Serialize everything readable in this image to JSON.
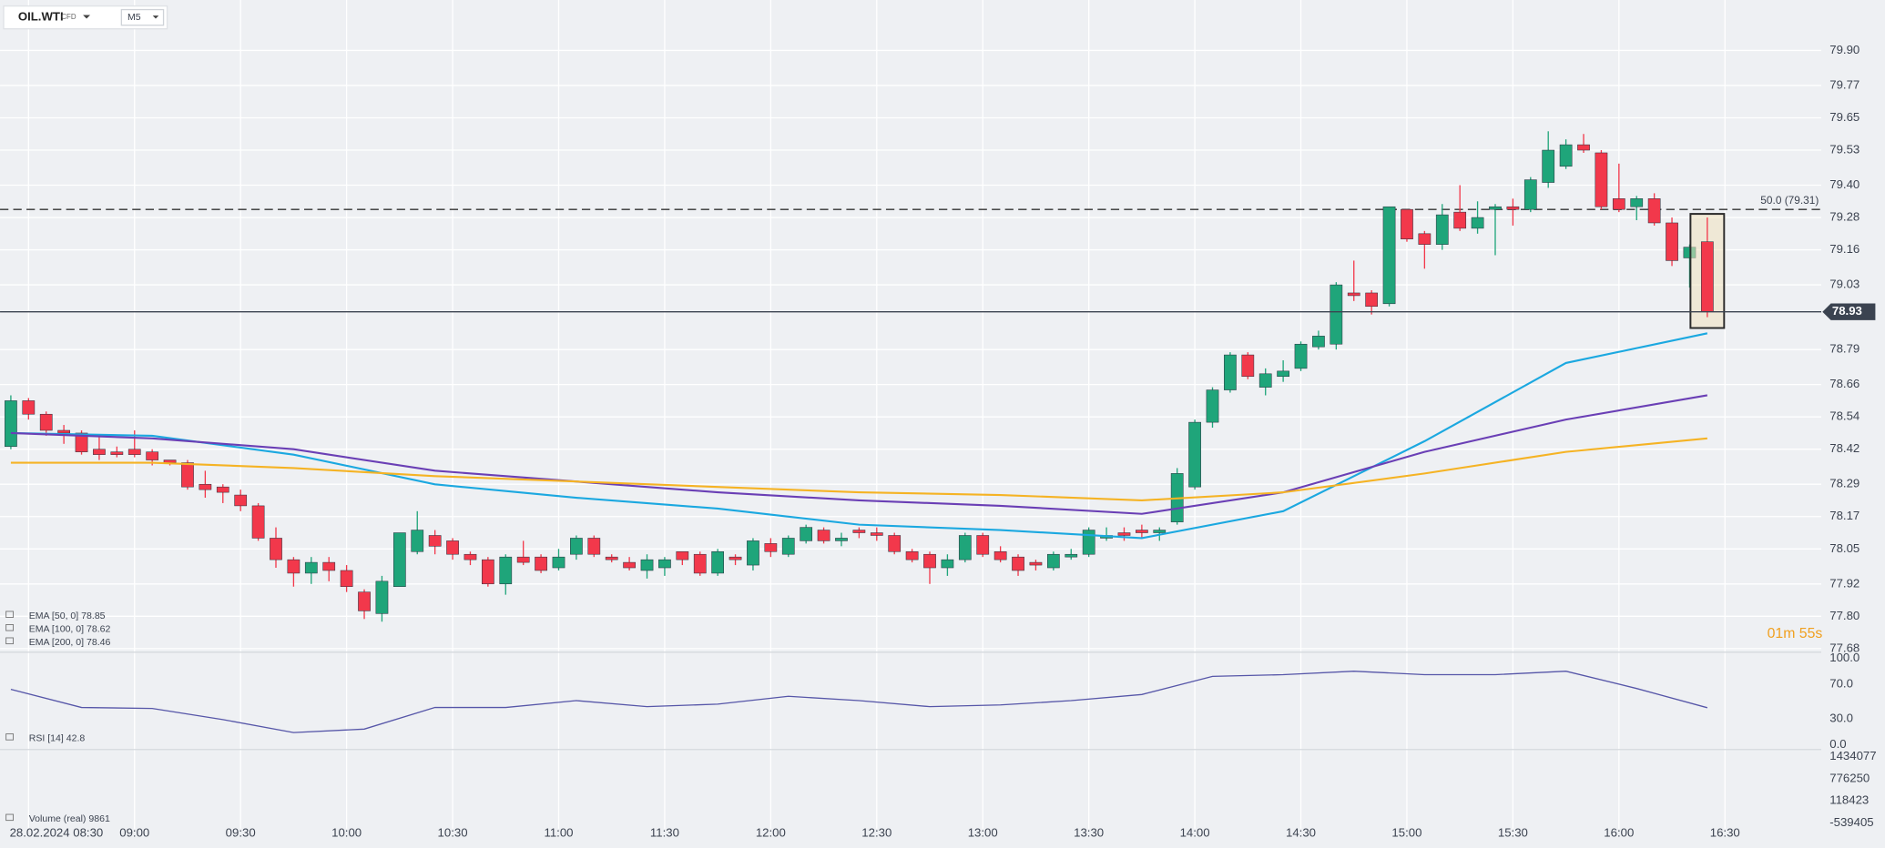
{
  "header": {
    "symbol": "OIL.WTI",
    "kind": "CFD",
    "timeframe": "M5"
  },
  "chart_data": {
    "type": "candlestick",
    "up_color": "#1fa57a",
    "down_color": "#f2384b",
    "open": [
      78.43,
      78.6,
      78.55,
      78.49,
      78.48,
      78.42,
      78.41,
      78.42,
      78.41,
      78.38,
      78.37,
      78.29,
      78.28,
      78.25,
      78.21,
      78.09,
      78.01,
      77.96,
      78.0,
      77.97,
      77.89,
      77.81,
      77.91,
      78.04,
      78.1,
      78.08,
      78.03,
      78.01,
      77.92,
      78.02,
      78.02,
      77.98,
      78.03,
      78.09,
      78.02,
      78.0,
      77.97,
      77.98,
      78.04,
      78.03,
      77.96,
      78.02,
      77.99,
      78.07,
      78.03,
      78.08,
      78.12,
      78.08,
      78.12,
      78.11,
      78.1,
      78.04,
      78.03,
      77.98,
      78.01,
      78.1,
      78.04,
      78.02,
      78.0,
      77.98,
      78.02,
      78.03,
      78.09,
      78.11,
      78.12,
      78.11,
      78.15,
      78.28,
      78.52,
      78.64,
      78.77,
      78.65,
      78.69,
      78.72,
      78.8,
      78.81,
      79.0,
      79.0,
      78.96,
      79.31,
      79.22,
      79.18,
      79.3,
      79.24,
      79.31,
      79.32,
      79.31,
      79.41,
      79.47,
      79.55,
      79.52,
      79.35,
      79.32,
      79.35,
      79.26,
      79.13,
      79.19
    ],
    "high": [
      78.62,
      78.61,
      78.56,
      78.51,
      78.49,
      78.47,
      78.43,
      78.49,
      78.42,
      78.38,
      78.38,
      78.34,
      78.29,
      78.27,
      78.22,
      78.13,
      78.02,
      78.02,
      78.02,
      77.99,
      77.9,
      77.95,
      78.11,
      78.19,
      78.12,
      78.09,
      78.04,
      78.02,
      78.03,
      78.08,
      78.03,
      78.05,
      78.1,
      78.1,
      78.03,
      78.02,
      78.03,
      78.02,
      78.04,
      78.04,
      78.05,
      78.03,
      78.09,
      78.09,
      78.1,
      78.14,
      78.13,
      78.11,
      78.13,
      78.13,
      78.11,
      78.05,
      78.04,
      78.03,
      78.11,
      78.11,
      78.06,
      78.03,
      78.01,
      78.04,
      78.05,
      78.13,
      78.13,
      78.13,
      78.14,
      78.13,
      78.35,
      78.53,
      78.65,
      78.78,
      78.78,
      78.72,
      78.75,
      78.82,
      78.86,
      79.04,
      79.12,
      79.01,
      79.32,
      79.31,
      79.23,
      79.33,
      79.4,
      79.34,
      79.33,
      79.35,
      79.43,
      79.6,
      79.57,
      79.59,
      79.53,
      79.48,
      79.36,
      79.37,
      79.28,
      79.18,
      79.28
    ],
    "low": [
      78.42,
      78.53,
      78.47,
      78.44,
      78.4,
      78.38,
      78.39,
      78.39,
      78.36,
      78.36,
      78.27,
      78.24,
      78.22,
      78.19,
      78.08,
      77.98,
      77.91,
      77.92,
      77.93,
      77.89,
      77.79,
      77.78,
      77.91,
      78.03,
      78.03,
      78.01,
      77.99,
      77.91,
      77.88,
      77.99,
      77.96,
      77.97,
      78.01,
      78.02,
      78.0,
      77.97,
      77.94,
      77.95,
      77.99,
      77.95,
      77.95,
      77.99,
      77.97,
      78.02,
      78.02,
      78.07,
      78.07,
      78.06,
      78.09,
      78.08,
      78.03,
      78.0,
      77.92,
      77.95,
      78.0,
      78.02,
      78.0,
      77.95,
      77.97,
      77.97,
      78.01,
      78.02,
      78.08,
      78.08,
      78.09,
      78.08,
      78.14,
      78.27,
      78.5,
      78.63,
      78.68,
      78.62,
      78.67,
      78.71,
      78.79,
      78.79,
      78.97,
      78.92,
      78.95,
      79.19,
      79.09,
      79.16,
      79.23,
      79.22,
      79.14,
      79.25,
      79.3,
      79.39,
      79.46,
      79.52,
      79.31,
      79.3,
      79.27,
      79.25,
      79.1,
      79.02,
      78.91
    ],
    "close": [
      78.6,
      78.55,
      78.49,
      78.48,
      78.41,
      78.4,
      78.4,
      78.4,
      78.38,
      78.37,
      78.28,
      78.27,
      78.26,
      78.21,
      78.09,
      78.01,
      77.96,
      78.0,
      77.97,
      77.91,
      77.82,
      77.93,
      78.11,
      78.12,
      78.06,
      78.03,
      78.01,
      77.92,
      78.02,
      78.0,
      77.97,
      78.02,
      78.09,
      78.03,
      78.01,
      77.98,
      78.01,
      78.01,
      78.01,
      77.96,
      78.04,
      78.01,
      78.08,
      78.04,
      78.09,
      78.13,
      78.08,
      78.09,
      78.11,
      78.1,
      78.04,
      78.01,
      77.98,
      78.01,
      78.1,
      78.03,
      78.01,
      77.97,
      77.99,
      78.03,
      78.03,
      78.12,
      78.1,
      78.1,
      78.11,
      78.12,
      78.33,
      78.52,
      78.64,
      78.77,
      78.69,
      78.7,
      78.71,
      78.81,
      78.84,
      79.03,
      78.99,
      78.95,
      79.32,
      79.2,
      79.18,
      79.29,
      79.24,
      79.28,
      79.32,
      79.31,
      79.42,
      79.53,
      79.55,
      79.53,
      79.32,
      79.31,
      79.35,
      79.26,
      79.12,
      79.17,
      78.93
    ],
    "ylim": [
      77.68,
      79.9
    ],
    "yticks": [
      {
        "value": 79.9,
        "label": "79.90"
      },
      79.77,
      79.65,
      79.53,
      {
        "value": 79.4,
        "label": "79.40"
      },
      79.28,
      79.16,
      79.03,
      78.79,
      78.66,
      78.54,
      78.42,
      78.29,
      78.17,
      78.05,
      77.92,
      {
        "value": 77.8,
        "label": "77.80"
      },
      77.68
    ],
    "xlim": [
      0,
      103
    ],
    "xticks": [
      {
        "value": 1,
        "label": "28.02.2024  08:30"
      },
      {
        "value": 7,
        "label": "09:00"
      },
      {
        "value": 13,
        "label": "09:30"
      },
      {
        "value": 19,
        "label": "10:00"
      },
      {
        "value": 25,
        "label": "10:30"
      },
      {
        "value": 31,
        "label": "11:00"
      },
      {
        "value": 37,
        "label": "11:30"
      },
      {
        "value": 43,
        "label": "12:00"
      },
      {
        "value": 49,
        "label": "12:30"
      },
      {
        "value": 55,
        "label": "13:00"
      },
      {
        "value": 61,
        "label": "13:30"
      },
      {
        "value": 67,
        "label": "14:00"
      },
      {
        "value": 73,
        "label": "14:30"
      },
      {
        "value": 79,
        "label": "15:00"
      },
      {
        "value": 85,
        "label": "15:30"
      },
      {
        "value": 91,
        "label": "16:00"
      },
      {
        "value": 97,
        "label": "16:30"
      }
    ],
    "current_price": 78.93,
    "level": {
      "value": 79.31,
      "label": "50.0 (79.31)"
    },
    "countdown": "01m 55s",
    "overlays": [
      {
        "name": "EMA [50, 0]  78.85",
        "color": "#1ba8e0",
        "x": [
          0,
          8,
          16,
          24,
          32,
          40,
          48,
          56,
          64,
          72,
          80,
          88,
          96
        ],
        "values": [
          78.48,
          78.47,
          78.4,
          78.29,
          78.24,
          78.2,
          78.14,
          78.12,
          78.09,
          78.19,
          78.45,
          78.74,
          78.85
        ]
      },
      {
        "name": "EMA [100, 0]  78.62",
        "color": "#6a3fb5",
        "x": [
          0,
          8,
          16,
          24,
          32,
          40,
          48,
          56,
          64,
          72,
          80,
          88,
          96
        ],
        "values": [
          78.48,
          78.46,
          78.42,
          78.34,
          78.3,
          78.26,
          78.23,
          78.21,
          78.18,
          78.26,
          78.41,
          78.53,
          78.62
        ]
      },
      {
        "name": "EMA [200, 0]  78.46",
        "color": "#f5b324",
        "x": [
          0,
          8,
          16,
          24,
          32,
          40,
          48,
          56,
          64,
          72,
          80,
          88,
          96
        ],
        "values": [
          78.37,
          78.37,
          78.35,
          78.32,
          78.3,
          78.28,
          78.26,
          78.25,
          78.23,
          78.26,
          78.33,
          78.41,
          78.46
        ]
      }
    ],
    "rsi": {
      "name": "RSI [14]  42.8",
      "color": "#5656a8",
      "ylim": [
        0,
        100
      ],
      "yticks": [
        {
          "value": 100,
          "label": "100.0"
        },
        {
          "value": 70,
          "label": "70.0"
        },
        {
          "value": 30,
          "label": "30.0"
        },
        {
          "value": 0,
          "label": "0.0"
        }
      ],
      "x": [
        0,
        4,
        8,
        12,
        16,
        20,
        24,
        28,
        32,
        36,
        40,
        44,
        48,
        52,
        56,
        60,
        64,
        68,
        72,
        76,
        80,
        84,
        88,
        92,
        96
      ],
      "values": [
        64,
        43,
        42,
        29,
        14,
        18,
        43,
        43,
        51,
        44,
        47,
        56,
        51,
        44,
        46,
        51,
        58,
        79,
        81,
        85,
        81,
        81,
        85,
        65,
        42.8
      ]
    },
    "volume": {
      "name": "Volume  (real)   9861",
      "ylim": [
        -539405,
        1434077
      ],
      "yticks": [
        1434077,
        776250,
        118423,
        -539405
      ]
    }
  }
}
